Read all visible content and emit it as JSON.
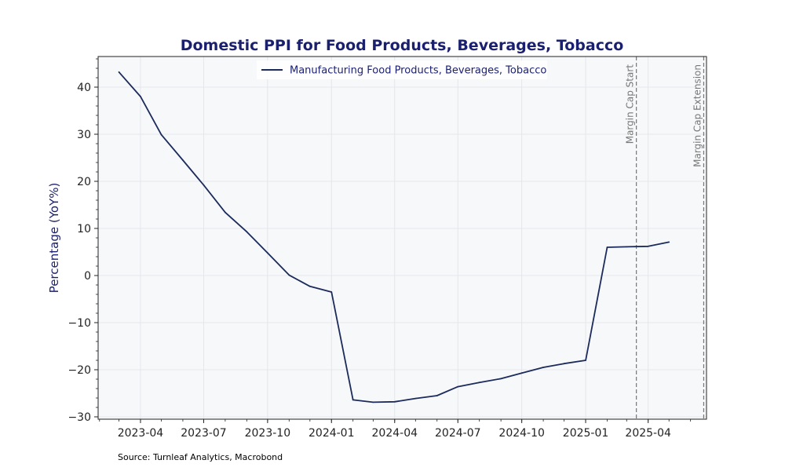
{
  "chart_data": {
    "type": "line",
    "title": "Domestic PPI for Food Products, Beverages, Tobacco",
    "ylabel": "Percentage (YoY%)",
    "xlabel": "",
    "ylim": [
      -30.5,
      46.5
    ],
    "xlim": [
      "2023-01-30",
      "2025-06-24"
    ],
    "yticks": [
      -30,
      -20,
      -10,
      0,
      10,
      20,
      30,
      40
    ],
    "xticks": [
      "2023-04",
      "2023-07",
      "2023-10",
      "2024-01",
      "2024-04",
      "2024-07",
      "2024-10",
      "2025-01",
      "2025-04"
    ],
    "grid": true,
    "legend_position": "upper-center",
    "series": [
      {
        "name": "Manufacturing Food Products, Beverages, Tobacco",
        "color": "#1c2a5c",
        "points": [
          {
            "x": "2023-03-01",
            "y": 43.2
          },
          {
            "x": "2023-04-01",
            "y": 38.0
          },
          {
            "x": "2023-05-01",
            "y": 29.9
          },
          {
            "x": "2023-06-01",
            "y": 24.5
          },
          {
            "x": "2023-07-01",
            "y": 19.2
          },
          {
            "x": "2023-08-01",
            "y": 13.4
          },
          {
            "x": "2023-09-01",
            "y": 9.3
          },
          {
            "x": "2023-10-01",
            "y": 4.8
          },
          {
            "x": "2023-11-01",
            "y": 0.1
          },
          {
            "x": "2023-12-01",
            "y": -2.3
          },
          {
            "x": "2024-01-01",
            "y": -3.5
          },
          {
            "x": "2024-02-01",
            "y": -26.4
          },
          {
            "x": "2024-03-01",
            "y": -26.9
          },
          {
            "x": "2024-04-01",
            "y": -26.8
          },
          {
            "x": "2024-05-01",
            "y": -26.1
          },
          {
            "x": "2024-06-01",
            "y": -25.5
          },
          {
            "x": "2024-07-01",
            "y": -23.6
          },
          {
            "x": "2024-08-01",
            "y": -22.7
          },
          {
            "x": "2024-09-01",
            "y": -21.9
          },
          {
            "x": "2024-10-01",
            "y": -20.7
          },
          {
            "x": "2024-11-01",
            "y": -19.5
          },
          {
            "x": "2024-12-01",
            "y": -18.7
          },
          {
            "x": "2025-01-01",
            "y": -18.0
          },
          {
            "x": "2025-02-01",
            "y": 6.0
          },
          {
            "x": "2025-03-01",
            "y": 6.1
          },
          {
            "x": "2025-04-01",
            "y": 6.2
          },
          {
            "x": "2025-05-01",
            "y": 7.1
          }
        ]
      }
    ],
    "vlines": [
      {
        "x": "2025-03-15",
        "label": "Margin Cap Start"
      },
      {
        "x": "2025-06-20",
        "label": "Margin Cap Extension"
      }
    ]
  },
  "source": "Source: Turnleaf Analytics, Macrobond",
  "colors": {
    "title": "#1a1f6e",
    "line": "#1c2a5c",
    "plot_bg": "#f6f8fa",
    "grid": "#e0e3e8",
    "vline": "#777777"
  }
}
